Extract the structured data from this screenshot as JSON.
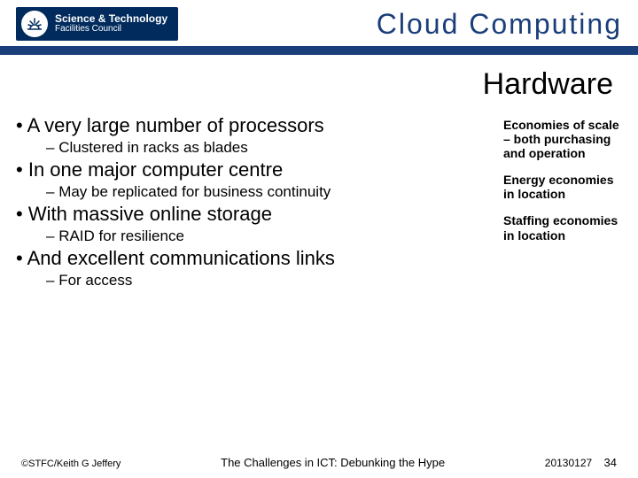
{
  "header": {
    "logo_line1": "Science & Technology",
    "logo_line2": "Facilities Council",
    "title": "Cloud Computing",
    "title_color": "#1a3e7a",
    "bar_color": "#1a3e7a"
  },
  "subtitle": "Hardware",
  "bullets": [
    {
      "level": 1,
      "text": "A very large number of processors"
    },
    {
      "level": 2,
      "text": "Clustered in racks as blades"
    },
    {
      "level": 1,
      "text": "In one major computer centre"
    },
    {
      "level": 2,
      "text": "May be replicated for business continuity"
    },
    {
      "level": 1,
      "text": "With massive online storage"
    },
    {
      "level": 2,
      "text": "RAID for resilience"
    },
    {
      "level": 1,
      "text": "And excellent communications links"
    },
    {
      "level": 2,
      "text": "For access"
    }
  ],
  "side_notes": [
    "Economies of scale – both purchasing and operation",
    "Energy economies in location",
    "Staffing economies in location"
  ],
  "footer": {
    "left": "©STFC/Keith G Jeffery",
    "center": "The Challenges in ICT: Debunking the Hype",
    "date": "20130127",
    "page": "34"
  },
  "colors": {
    "logo_bg": "#002b5c",
    "text_main": "#000000"
  }
}
